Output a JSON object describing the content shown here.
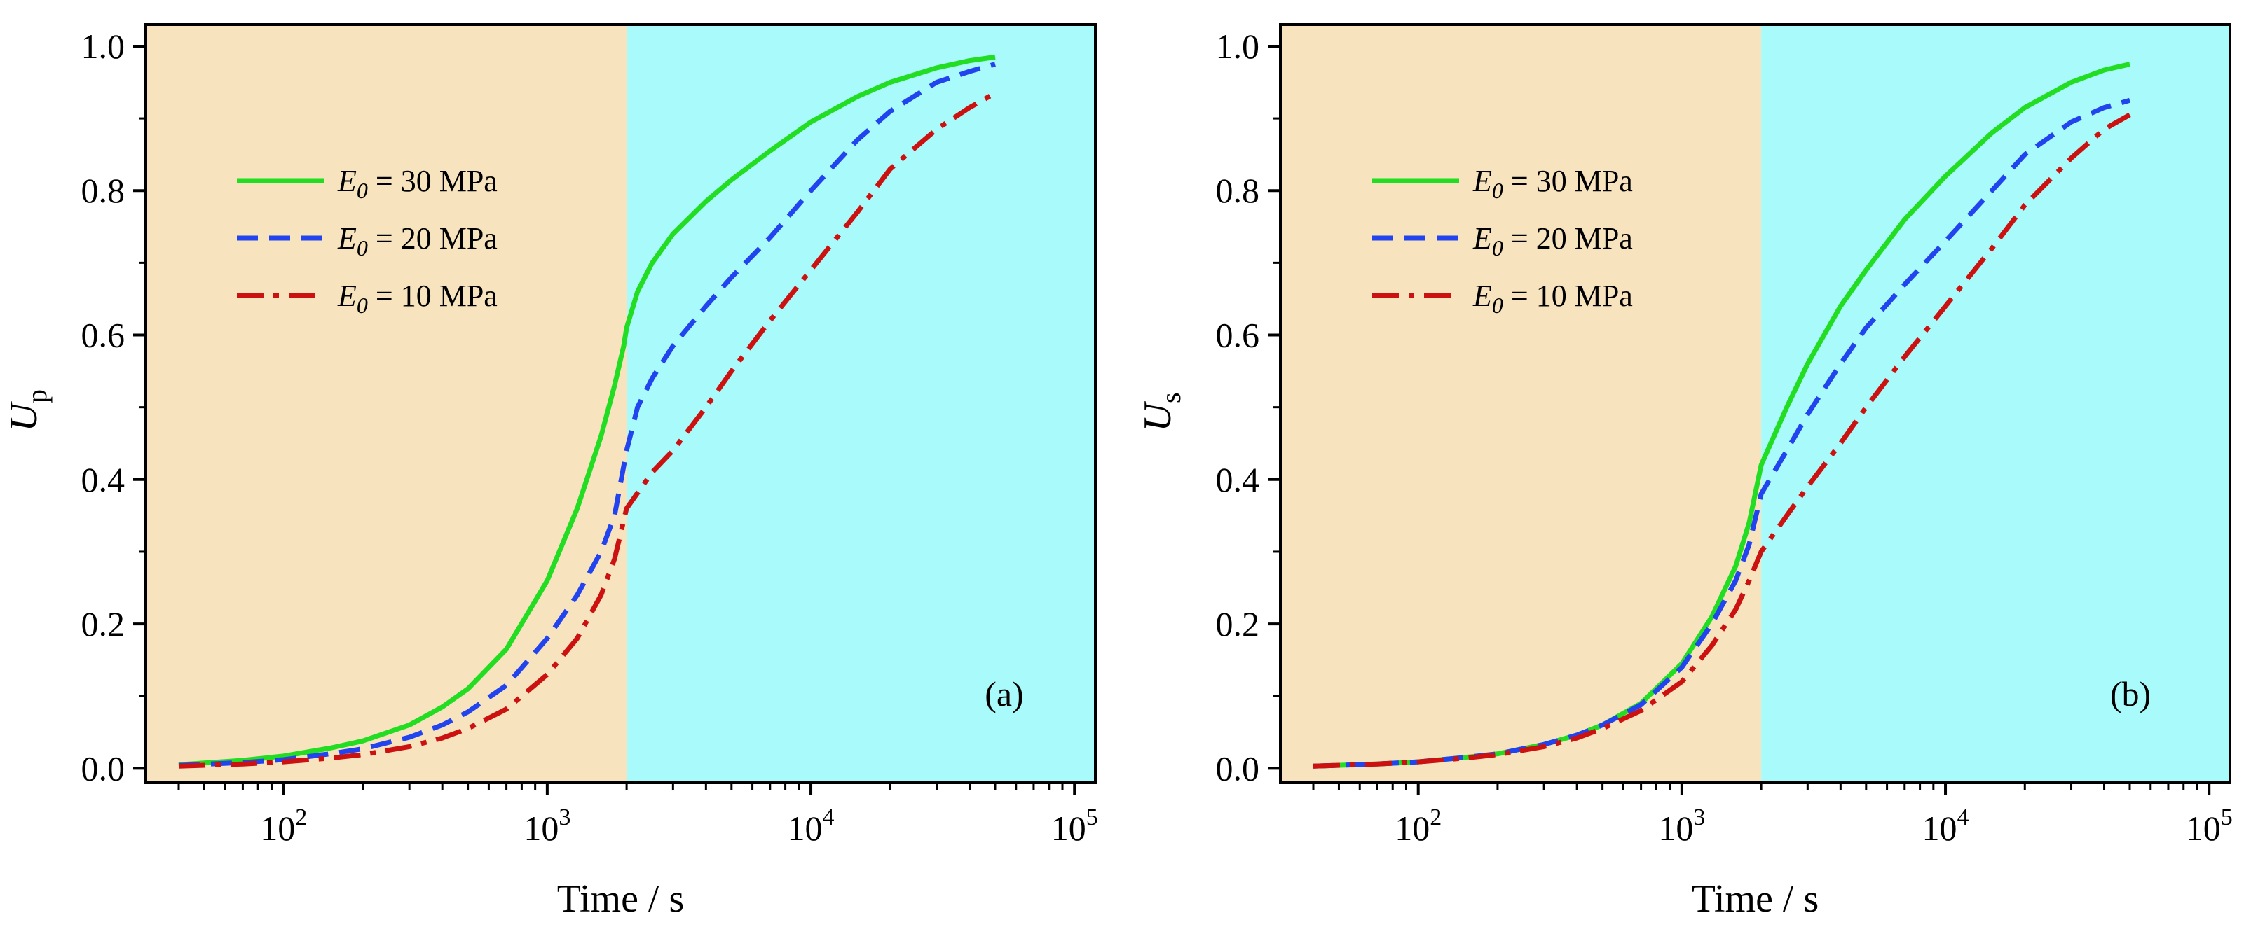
{
  "colors": {
    "phase1_background": "#F7E3BE",
    "phase2_background": "#A9FBFB",
    "series_30": "#22DD22",
    "series_20": "#2244EE",
    "series_10": "#CC1111"
  },
  "chart_data": [
    {
      "type": "line",
      "panel_label": "(a)",
      "xlabel": "Time / s",
      "ylabel_main": "U",
      "ylabel_sub": "p",
      "xscale": "log",
      "xlim": [
        30,
        120000
      ],
      "ylim": [
        -0.02,
        1.03
      ],
      "xticks": [
        100,
        1000,
        10000,
        100000
      ],
      "xtick_labels": [
        {
          "base": "10",
          "exp": "2"
        },
        {
          "base": "10",
          "exp": "3"
        },
        {
          "base": "10",
          "exp": "4"
        },
        {
          "base": "10",
          "exp": "5"
        }
      ],
      "yticks": [
        0.0,
        0.2,
        0.4,
        0.6,
        0.8,
        1.0
      ],
      "ytick_labels": [
        "0.0",
        "0.2",
        "0.4",
        "0.6",
        "0.8",
        "1.0"
      ],
      "shaded_regions": [
        {
          "name": "phase-1",
          "x_range": [
            30,
            2000
          ],
          "color": "#F7E3BE"
        },
        {
          "name": "phase-2",
          "x_range": [
            2000,
            120000
          ],
          "color": "#A9FBFB"
        }
      ],
      "legend_position": "upper-left",
      "series": [
        {
          "name": "E0 = 30 MPa",
          "legend_symbol": "E",
          "legend_sub": "0",
          "legend_text": " = 30 MPa",
          "style": "solid",
          "color": "#22DD22",
          "x": [
            40,
            70,
            100,
            150,
            200,
            300,
            400,
            500,
            700,
            1000,
            1300,
            1600,
            1800,
            1950,
            2000,
            2200,
            2500,
            3000,
            4000,
            5000,
            7000,
            10000,
            15000,
            20000,
            30000,
            40000,
            50000
          ],
          "y": [
            0.005,
            0.011,
            0.017,
            0.028,
            0.038,
            0.06,
            0.085,
            0.11,
            0.165,
            0.26,
            0.36,
            0.46,
            0.53,
            0.585,
            0.61,
            0.66,
            0.7,
            0.74,
            0.785,
            0.815,
            0.855,
            0.895,
            0.93,
            0.95,
            0.97,
            0.98,
            0.985
          ]
        },
        {
          "name": "E0 = 20 MPa",
          "legend_symbol": "E",
          "legend_sub": "0",
          "legend_text": " = 20 MPa",
          "style": "dashed",
          "color": "#2244EE",
          "x": [
            40,
            70,
            100,
            150,
            200,
            300,
            400,
            500,
            700,
            1000,
            1300,
            1600,
            1800,
            2000,
            2200,
            2500,
            3000,
            4000,
            5000,
            7000,
            10000,
            15000,
            20000,
            30000,
            40000,
            50000
          ],
          "y": [
            0.004,
            0.008,
            0.012,
            0.02,
            0.027,
            0.043,
            0.06,
            0.078,
            0.115,
            0.18,
            0.24,
            0.3,
            0.35,
            0.44,
            0.5,
            0.54,
            0.585,
            0.64,
            0.68,
            0.735,
            0.8,
            0.87,
            0.91,
            0.95,
            0.965,
            0.975
          ]
        },
        {
          "name": "E0 = 10 MPa",
          "legend_symbol": "E",
          "legend_sub": "0",
          "legend_text": " = 10 MPa",
          "style": "dashdot",
          "color": "#CC1111",
          "x": [
            40,
            70,
            100,
            150,
            200,
            300,
            400,
            500,
            700,
            1000,
            1300,
            1600,
            1800,
            2000,
            2500,
            3000,
            4000,
            5000,
            7000,
            10000,
            15000,
            20000,
            30000,
            40000,
            50000
          ],
          "y": [
            0.003,
            0.006,
            0.009,
            0.014,
            0.019,
            0.03,
            0.042,
            0.055,
            0.082,
            0.13,
            0.18,
            0.24,
            0.29,
            0.36,
            0.41,
            0.44,
            0.5,
            0.55,
            0.62,
            0.69,
            0.77,
            0.83,
            0.885,
            0.915,
            0.935
          ]
        }
      ]
    },
    {
      "type": "line",
      "panel_label": "(b)",
      "xlabel": "Time / s",
      "ylabel_main": "U",
      "ylabel_sub": "s",
      "xscale": "log",
      "xlim": [
        30,
        120000
      ],
      "ylim": [
        -0.02,
        1.03
      ],
      "xticks": [
        100,
        1000,
        10000,
        100000
      ],
      "xtick_labels": [
        {
          "base": "10",
          "exp": "2"
        },
        {
          "base": "10",
          "exp": "3"
        },
        {
          "base": "10",
          "exp": "4"
        },
        {
          "base": "10",
          "exp": "5"
        }
      ],
      "yticks": [
        0.0,
        0.2,
        0.4,
        0.6,
        0.8,
        1.0
      ],
      "ytick_labels": [
        "0.0",
        "0.2",
        "0.4",
        "0.6",
        "0.8",
        "1.0"
      ],
      "shaded_regions": [
        {
          "name": "phase-1",
          "x_range": [
            30,
            2000
          ],
          "color": "#F7E3BE"
        },
        {
          "name": "phase-2",
          "x_range": [
            2000,
            120000
          ],
          "color": "#A9FBFB"
        }
      ],
      "legend_position": "upper-left",
      "series": [
        {
          "name": "E0 = 30 MPa",
          "legend_symbol": "E",
          "legend_sub": "0",
          "legend_text": " = 30 MPa",
          "style": "solid",
          "color": "#22DD22",
          "x": [
            40,
            70,
            100,
            150,
            200,
            300,
            400,
            500,
            700,
            1000,
            1300,
            1600,
            1800,
            2000,
            2500,
            3000,
            4000,
            5000,
            7000,
            10000,
            15000,
            20000,
            30000,
            40000,
            50000
          ],
          "y": [
            0.003,
            0.006,
            0.009,
            0.015,
            0.02,
            0.033,
            0.046,
            0.06,
            0.09,
            0.145,
            0.21,
            0.28,
            0.34,
            0.42,
            0.5,
            0.56,
            0.64,
            0.69,
            0.76,
            0.82,
            0.88,
            0.915,
            0.95,
            0.967,
            0.975
          ]
        },
        {
          "name": "E0 = 20 MPa",
          "legend_symbol": "E",
          "legend_sub": "0",
          "legend_text": " = 20 MPa",
          "style": "dashed",
          "color": "#2244EE",
          "x": [
            40,
            70,
            100,
            150,
            200,
            300,
            400,
            500,
            700,
            1000,
            1300,
            1600,
            1800,
            2000,
            2500,
            3000,
            4000,
            5000,
            7000,
            10000,
            15000,
            20000,
            30000,
            40000,
            50000
          ],
          "y": [
            0.003,
            0.006,
            0.009,
            0.015,
            0.02,
            0.033,
            0.046,
            0.06,
            0.088,
            0.14,
            0.2,
            0.26,
            0.31,
            0.38,
            0.44,
            0.49,
            0.56,
            0.61,
            0.67,
            0.73,
            0.8,
            0.85,
            0.895,
            0.915,
            0.925
          ]
        },
        {
          "name": "E0 = 10 MPa",
          "legend_symbol": "E",
          "legend_sub": "0",
          "legend_text": " = 10 MPa",
          "style": "dashdot",
          "color": "#CC1111",
          "x": [
            40,
            70,
            100,
            150,
            200,
            300,
            400,
            500,
            700,
            1000,
            1300,
            1600,
            1800,
            2000,
            2500,
            3000,
            4000,
            5000,
            7000,
            10000,
            15000,
            20000,
            30000,
            40000,
            50000
          ],
          "y": [
            0.003,
            0.006,
            0.009,
            0.014,
            0.019,
            0.03,
            0.042,
            0.055,
            0.08,
            0.12,
            0.17,
            0.22,
            0.26,
            0.3,
            0.35,
            0.39,
            0.45,
            0.5,
            0.57,
            0.64,
            0.72,
            0.78,
            0.845,
            0.885,
            0.905
          ]
        }
      ]
    }
  ]
}
